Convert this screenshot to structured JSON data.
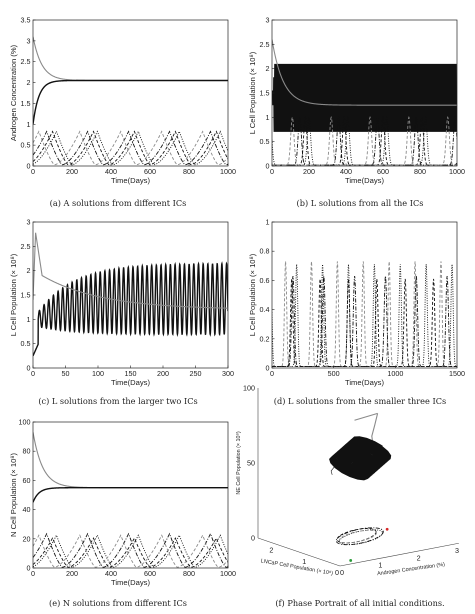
{
  "figure": {
    "panels": [
      {
        "id": "a",
        "caption": "(a) A solutions from different ICs"
      },
      {
        "id": "b",
        "caption": "(b) L solutions from all the ICs"
      },
      {
        "id": "c",
        "caption": "(c) L solutions from the larger two ICs"
      },
      {
        "id": "d",
        "caption": "(d) L solutions from the smaller three ICs"
      },
      {
        "id": "e",
        "caption": "(e) N solutions from different ICs"
      },
      {
        "id": "f",
        "caption": "(f) Phase Portrait of all initial conditions."
      }
    ]
  },
  "colors": {
    "gray": "#8a8a8a",
    "black": "#111111",
    "green": "#2a9d3a",
    "red": "#d62828"
  },
  "chart_data": [
    {
      "id": "a",
      "type": "line",
      "xlabel": "Time(Days)",
      "ylabel": "Androgen Concentration (%)",
      "xlim": [
        0,
        1000
      ],
      "ylim": [
        0,
        3.5
      ],
      "xticks": [
        0,
        200,
        400,
        600,
        800,
        1000
      ],
      "yticks": [
        0,
        0.5,
        1,
        1.5,
        2,
        2.5,
        3,
        3.5
      ],
      "series": [
        {
          "style": "gray-solid",
          "kind": "decay",
          "start": 3.1,
          "end": 2.05,
          "tau": 45
        },
        {
          "style": "black-solid",
          "kind": "rise",
          "start": 1.0,
          "end": 2.05,
          "tau": 30
        },
        {
          "style": "black-dashdot",
          "kind": "osc",
          "base": 0.03,
          "amp": 0.8,
          "period": 210,
          "phase": 150
        },
        {
          "style": "black-dashed",
          "kind": "osc",
          "base": 0.03,
          "amp": 0.8,
          "period": 210,
          "phase": 180
        },
        {
          "style": "black-dotted",
          "kind": "osc",
          "base": 0.03,
          "amp": 0.8,
          "period": 210,
          "phase": 200
        },
        {
          "style": "gray-dashed",
          "kind": "osc",
          "base": 0.03,
          "amp": 0.8,
          "period": 210,
          "phase": 110
        }
      ]
    },
    {
      "id": "b",
      "type": "line",
      "xlabel": "Time(Days)",
      "ylabel": "L Cell Population (× 10⁸)",
      "xlim": [
        0,
        1000
      ],
      "ylim": [
        0,
        3
      ],
      "xticks": [
        0,
        200,
        400,
        600,
        800,
        1000
      ],
      "yticks": [
        0,
        0.5,
        1,
        1.5,
        2,
        2.5,
        3
      ],
      "series": [
        {
          "style": "black-solid",
          "kind": "band",
          "low": 0.68,
          "high": 2.12,
          "cycles": 140
        },
        {
          "style": "gray-solid",
          "kind": "decay",
          "start": 2.6,
          "end": 1.25,
          "tau": 60
        },
        {
          "style": "black-dotted",
          "kind": "spike",
          "base": 0.02,
          "amp": 0.98,
          "period": 210,
          "phase": 200
        },
        {
          "style": "black-dashdot",
          "kind": "spike",
          "base": 0.02,
          "amp": 0.98,
          "period": 210,
          "phase": 150
        },
        {
          "style": "black-dashed",
          "kind": "spike",
          "base": 0.02,
          "amp": 0.98,
          "period": 210,
          "phase": 180
        },
        {
          "style": "gray-dashed",
          "kind": "spike",
          "base": 0.02,
          "amp": 0.98,
          "period": 210,
          "phase": 110
        }
      ]
    },
    {
      "id": "c",
      "type": "line",
      "xlabel": "Time(Days)",
      "ylabel": "L Cell Population (× 10⁸)",
      "xlim": [
        0,
        300
      ],
      "ylim": [
        0,
        3
      ],
      "xticks": [
        0,
        50,
        100,
        150,
        200,
        250,
        300
      ],
      "yticks": [
        0,
        0.5,
        1,
        1.5,
        2,
        2.5,
        3
      ],
      "series": [
        {
          "style": "black-solid",
          "kind": "growosc",
          "period": 7.2
        },
        {
          "style": "gray-solid",
          "kind": "peakdecay",
          "peak": 2.78,
          "end": 1.2
        }
      ]
    },
    {
      "id": "d",
      "type": "line",
      "xlabel": "Time(Days)",
      "ylabel": "L Cell Population (× 10⁸)",
      "xlim": [
        0,
        1500
      ],
      "ylim": [
        0,
        1
      ],
      "xticks": [
        0,
        500,
        1000,
        1500
      ],
      "yticks": [
        0,
        0.2,
        0.4,
        0.6,
        0.8,
        1
      ],
      "series": [
        {
          "style": "black-dotted",
          "kind": "spike",
          "base": 0.01,
          "amp": 0.7,
          "period": 210,
          "phase": 200
        },
        {
          "style": "gray-dashed",
          "kind": "spike",
          "base": 0.01,
          "amp": 0.72,
          "period": 210,
          "phase": 110
        },
        {
          "style": "black-dashdot",
          "kind": "spike",
          "base": 0.01,
          "amp": 0.62,
          "period": 250,
          "phase": 170
        },
        {
          "style": "black-dashed",
          "kind": "spike",
          "base": 0.01,
          "amp": 0.6,
          "period": 230,
          "phase": 160
        }
      ]
    },
    {
      "id": "e",
      "type": "line",
      "xlabel": "Time(Days)",
      "ylabel": "N Cell Population (× 10⁸)",
      "xlim": [
        0,
        1000
      ],
      "ylim": [
        0,
        100
      ],
      "xticks": [
        0,
        200,
        400,
        600,
        800,
        1000
      ],
      "yticks": [
        0,
        20,
        40,
        60,
        80,
        100
      ],
      "series": [
        {
          "style": "gray-solid",
          "kind": "decay",
          "start": 93,
          "end": 55,
          "tau": 50
        },
        {
          "style": "black-solid",
          "kind": "rise",
          "start": 45,
          "end": 55,
          "tau": 30
        },
        {
          "style": "black-dashdot",
          "kind": "osc",
          "base": 0.5,
          "amp": 23,
          "period": 210,
          "phase": 150
        },
        {
          "style": "black-dashed",
          "kind": "osc",
          "base": 0.5,
          "amp": 20,
          "period": 210,
          "phase": 180
        },
        {
          "style": "black-dotted",
          "kind": "osc",
          "base": 0.5,
          "amp": 22,
          "period": 210,
          "phase": 200
        },
        {
          "style": "gray-dashed",
          "kind": "osc",
          "base": 0.5,
          "amp": 22,
          "period": 210,
          "phase": 110
        }
      ]
    },
    {
      "id": "f",
      "type": "line",
      "xlabel": "Androgen Concentration (%)",
      "ylabel": "LNCaP Cell Population (× 10⁸)",
      "zlabel": "NE Cell Population (× 10⁸)",
      "xticks": [
        0,
        1,
        2,
        3
      ],
      "yticks": [
        0,
        1,
        2
      ],
      "zticks": [
        0,
        50,
        100
      ]
    }
  ]
}
